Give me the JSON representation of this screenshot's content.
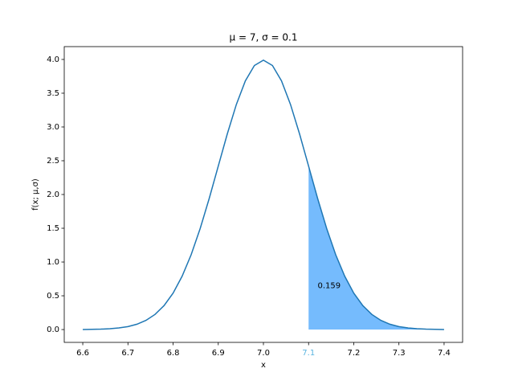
{
  "chart_data": {
    "type": "line",
    "title": "μ = 7, σ = 0.1",
    "xlabel": "x",
    "ylabel": "f(x; μ,σ)",
    "x": [
      6.6,
      6.62,
      6.64,
      6.66,
      6.68,
      6.7,
      6.72,
      6.74,
      6.76,
      6.78,
      6.8,
      6.82,
      6.84,
      6.86,
      6.88,
      6.9,
      6.92,
      6.94,
      6.96,
      6.98,
      7.0,
      7.02,
      7.04,
      7.06,
      7.08,
      7.1,
      7.12,
      7.14,
      7.16,
      7.18,
      7.2,
      7.22,
      7.24,
      7.26,
      7.28,
      7.3,
      7.32,
      7.34,
      7.36,
      7.38,
      7.4
    ],
    "series": [
      {
        "color": "#1f77b4",
        "values": [
          0.001,
          0.003,
          0.006,
          0.012,
          0.024,
          0.044,
          0.079,
          0.136,
          0.224,
          0.355,
          0.54,
          0.79,
          1.109,
          1.497,
          1.942,
          2.42,
          2.897,
          3.332,
          3.683,
          3.91,
          3.989,
          3.91,
          3.683,
          3.332,
          2.897,
          2.42,
          1.942,
          1.497,
          1.109,
          0.79,
          0.54,
          0.355,
          0.224,
          0.136,
          0.079,
          0.044,
          0.024,
          0.012,
          0.006,
          0.003,
          0.001
        ]
      }
    ],
    "shade_from": 7.1,
    "shade_color": "#75bbfd",
    "highlight_tick_color": "#5ab4e0",
    "annotation": {
      "text": "0.159",
      "x": 7.12,
      "y": 0.65
    },
    "xlim": [
      6.559,
      7.441
    ],
    "ylim": [
      -0.19,
      4.19
    ],
    "xticks": [
      6.6,
      6.7,
      6.8,
      6.9,
      {
        "value": 7,
        "label": "7.0"
      },
      7.1,
      7.2,
      7.3,
      7.4
    ],
    "yticks": [
      {
        "value": 0,
        "label": "0.0"
      },
      0.5,
      {
        "value": 1,
        "label": "1.0"
      },
      1.5,
      {
        "value": 2,
        "label": "2.0"
      },
      2.5,
      {
        "value": 3,
        "label": "3.0"
      },
      3.5,
      {
        "value": 4,
        "label": "4.0"
      }
    ]
  }
}
